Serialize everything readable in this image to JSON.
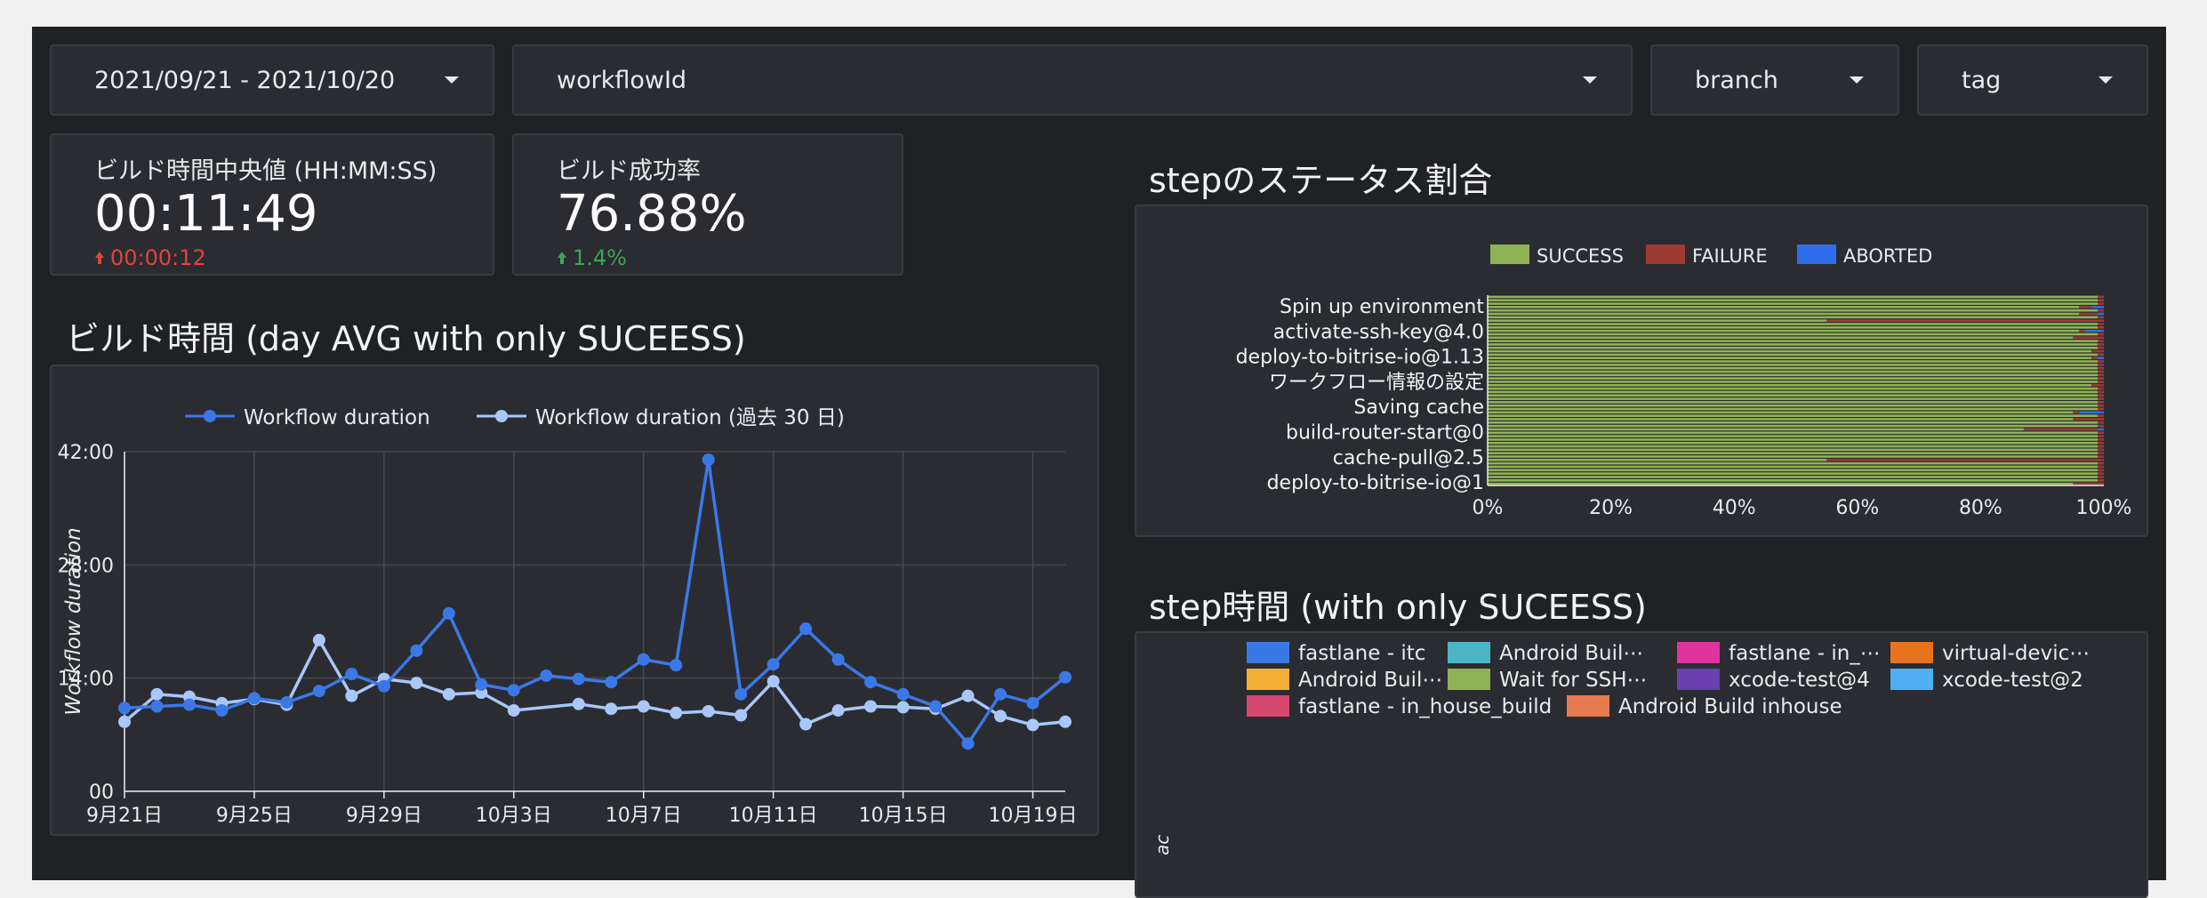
{
  "filters": {
    "date_range": "2021/09/21 - 2021/10/20",
    "workflow_id": "workflowId",
    "branch": "branch",
    "tag": "tag"
  },
  "scorecards": [
    {
      "title": "ビルド時間中央値 (HH:MM:SS)",
      "value": "00:11:49",
      "delta": "00:00:12",
      "delta_color": "#e0453a",
      "delta_dir": "up"
    },
    {
      "title": "ビルド成功率",
      "value": "76.88%",
      "delta": "1.4%",
      "delta_color": "#3aa757",
      "delta_dir": "up"
    }
  ],
  "build_time": {
    "title": "ビルド時間 (day AVG with only SUCEESS)",
    "chart_data": {
      "type": "line",
      "ylabel": "Workflow duration",
      "yticks": [
        "00",
        "14:00",
        "28:00",
        "42:00"
      ],
      "ylim_minutes": [
        0,
        42
      ],
      "xticks": [
        "9月21日",
        "9月25日",
        "9月29日",
        "10月3日",
        "10月7日",
        "10月11日",
        "10月15日",
        "10月19日"
      ],
      "x_days": 30,
      "grid": true,
      "legend_position": "top",
      "series": [
        {
          "name": "Workflow duration",
          "color": "#3b78e7",
          "values": [
            10.3,
            10.5,
            10.7,
            10.0,
            11.5,
            11.0,
            12.4,
            14.5,
            13.0,
            17.4,
            22.0,
            13.2,
            12.5,
            14.3,
            13.9,
            13.5,
            16.3,
            15.6,
            41.0,
            12.0,
            15.7,
            20.1,
            16.3,
            13.5,
            12.0,
            10.5,
            5.9,
            12.0,
            10.9,
            14.1
          ]
        },
        {
          "name": "Workflow duration (過去 30 日)",
          "color": "#a8c7fa",
          "values": [
            8.6,
            12.0,
            11.7,
            10.9,
            11.4,
            10.7,
            18.7,
            11.8,
            13.9,
            13.4,
            12.0,
            12.2,
            10.0,
            null,
            10.8,
            10.2,
            10.5,
            9.7,
            9.9,
            9.4,
            13.6,
            8.3,
            10.0,
            10.5,
            10.4,
            10.2,
            11.8,
            9.3,
            8.2,
            8.6
          ]
        }
      ]
    }
  },
  "step_status": {
    "title": "stepのステータス割合",
    "chart_data": {
      "type": "bar",
      "orientation": "horizontal",
      "stacked": "percent",
      "legend": [
        {
          "name": "SUCCESS",
          "color": "#8fb354"
        },
        {
          "name": "FAILURE",
          "color": "#9e3b35"
        },
        {
          "name": "ABORTED",
          "color": "#2f6ee8"
        }
      ],
      "y_labels": [
        "Spin up environment",
        "activate-ssh-key@4.0",
        "deploy-to-bitrise-io@1.13",
        "ワークフロー情報の設定",
        "Saving cache",
        "build-router-start@0",
        "cache-pull@2.5",
        "deploy-to-bitrise-io@1"
      ],
      "x_ticks": [
        "0%",
        "20%",
        "40%",
        "60%",
        "80%",
        "100%"
      ],
      "bar_count": 56,
      "failure_pct": [
        1,
        1,
        1,
        2,
        1,
        3,
        1,
        45,
        1,
        1,
        1,
        1,
        5,
        1,
        1,
        1,
        2,
        1,
        1,
        1,
        1,
        1,
        1,
        1,
        1,
        1,
        2,
        1,
        1,
        1,
        1,
        1,
        1,
        1,
        1,
        1,
        5,
        1,
        1,
        12,
        1,
        1,
        1,
        1,
        1,
        1,
        1,
        1,
        45,
        1,
        1,
        1,
        1,
        1,
        1,
        5
      ],
      "aborted_pct": [
        0,
        0,
        0,
        2,
        0,
        1,
        0,
        0,
        0,
        0,
        3,
        0,
        0,
        0,
        0,
        0,
        0,
        0,
        1,
        0,
        0,
        0,
        0,
        0,
        0,
        0,
        0,
        0,
        0,
        0,
        0,
        0,
        0,
        0,
        4,
        0,
        0,
        0,
        0,
        1,
        0,
        0,
        0,
        0,
        0,
        0,
        0,
        0,
        0,
        0,
        0,
        0,
        0,
        0,
        0,
        0
      ]
    }
  },
  "step_time": {
    "title": "step時間 (with only SUCEESS)",
    "legend": [
      {
        "name": "fastlane - itc",
        "color": "#3b78e7"
      },
      {
        "name": "Android Buil⋯",
        "color": "#4db6c6"
      },
      {
        "name": "fastlane - in_⋯",
        "color": "#e0339b"
      },
      {
        "name": "virtual-devic⋯",
        "color": "#e8731f"
      },
      {
        "name": "Android Buil⋯",
        "color": "#f2ae37"
      },
      {
        "name": "Wait for SSH⋯",
        "color": "#8fb354"
      },
      {
        "name": "xcode-test@4",
        "color": "#6a3fb0"
      },
      {
        "name": "xcode-test@2",
        "color": "#50aef2"
      },
      {
        "name": "fastlane - in_house_build",
        "color": "#d6476e"
      },
      {
        "name": "Android Build inhouse",
        "color": "#e57a4f"
      }
    ],
    "ylabel_fragment": "ac"
  }
}
